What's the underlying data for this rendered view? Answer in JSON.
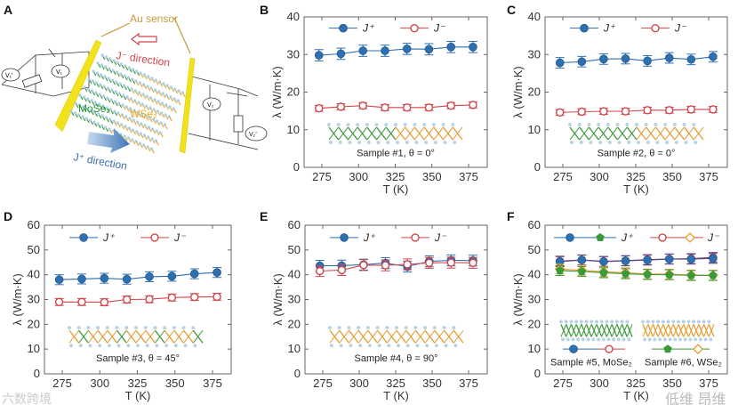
{
  "panel_a": {
    "label": "A",
    "au_sensor": "Au sensor",
    "j_minus_direction": "J⁻ direction",
    "j_plus_direction": "J⁺ direction",
    "mose2": "MoSe₂",
    "wse2": "WSe₂",
    "v1_prime": "V₁'",
    "v1": "V₁",
    "v2": "V₂",
    "v2_prime": "V₂'"
  },
  "watermark": {
    "left": "六数跨境",
    "right": "低维 昂维"
  },
  "colors": {
    "jplus": "#2e6fb0",
    "jminus": "#d0464a",
    "wse2_plus": "#3a9a3a",
    "wse2_minus": "#e89a2c",
    "mose2": "#3a9a3a",
    "wse2": "#e5a62a",
    "gold": "#c79a3c"
  },
  "chart_data": [
    {
      "panel": "B",
      "type": "scatter",
      "xlabel": "T (K)",
      "ylabel": "λ (W/m·K)",
      "xlim": [
        265,
        385
      ],
      "ylim": [
        0,
        40
      ],
      "xticks": [
        275,
        300,
        325,
        350,
        375
      ],
      "yticks": [
        0,
        10,
        20,
        30,
        40
      ],
      "x": [
        273,
        288,
        303,
        318,
        333,
        348,
        363,
        378
      ],
      "legend": [
        "J⁺",
        "J⁻"
      ],
      "caption": "Sample #1, θ = 0°",
      "series": [
        {
          "name": "J+",
          "values": [
            29.8,
            30.2,
            31.0,
            31.0,
            31.5,
            31.4,
            32.0,
            32.0
          ],
          "err": 1.5
        },
        {
          "name": "J-",
          "values": [
            15.7,
            16.1,
            16.4,
            15.9,
            15.9,
            15.9,
            16.4,
            16.6
          ],
          "err": 0.8
        }
      ]
    },
    {
      "panel": "C",
      "type": "scatter",
      "xlabel": "T (K)",
      "ylabel": "λ (W/m·K)",
      "xlim": [
        265,
        385
      ],
      "ylim": [
        0,
        40
      ],
      "xticks": [
        275,
        300,
        325,
        350,
        375
      ],
      "yticks": [
        0,
        10,
        20,
        30,
        40
      ],
      "x": [
        273,
        288,
        303,
        318,
        333,
        348,
        363,
        378
      ],
      "legend": [
        "J⁺",
        "J⁻"
      ],
      "caption": "Sample #2, θ = 0°",
      "series": [
        {
          "name": "J+",
          "values": [
            27.8,
            28.1,
            28.8,
            28.9,
            28.3,
            29.1,
            28.7,
            29.4
          ],
          "err": 1.4
        },
        {
          "name": "J-",
          "values": [
            14.6,
            14.8,
            14.9,
            14.9,
            15.2,
            15.2,
            15.4,
            15.4
          ],
          "err": 0.8
        }
      ]
    },
    {
      "panel": "D",
      "type": "scatter",
      "xlabel": "T (K)",
      "ylabel": "λ (W/m·K)",
      "xlim": [
        265,
        385
      ],
      "ylim": [
        0,
        60
      ],
      "xticks": [
        275,
        300,
        325,
        350,
        375
      ],
      "yticks": [
        0,
        10,
        20,
        30,
        40,
        50,
        60
      ],
      "x": [
        273,
        288,
        303,
        318,
        333,
        348,
        363,
        378
      ],
      "legend": [
        "J⁺",
        "J⁻"
      ],
      "caption": "Sample #3, θ = 45°",
      "series": [
        {
          "name": "J+",
          "values": [
            38.0,
            38.3,
            38.6,
            38.2,
            39.2,
            39.4,
            40.4,
            40.9
          ],
          "err": 2.0
        },
        {
          "name": "J-",
          "values": [
            29.0,
            29.0,
            28.9,
            30.0,
            30.1,
            30.8,
            31.0,
            31.1
          ],
          "err": 1.4
        }
      ]
    },
    {
      "panel": "E",
      "type": "scatter",
      "xlabel": "T (K)",
      "ylabel": "λ (W/m·K)",
      "xlim": [
        265,
        385
      ],
      "ylim": [
        0,
        60
      ],
      "xticks": [
        275,
        300,
        325,
        350,
        375
      ],
      "yticks": [
        0,
        10,
        20,
        30,
        40,
        50,
        60
      ],
      "x": [
        273,
        288,
        303,
        318,
        333,
        348,
        363,
        378
      ],
      "legend": [
        "J⁺",
        "J⁻"
      ],
      "caption": "Sample #4, θ = 90°",
      "series": [
        {
          "name": "J+",
          "values": [
            43.6,
            43.7,
            44.1,
            44.7,
            43.3,
            45.4,
            45.8,
            45.7
          ],
          "err": 2.2
        },
        {
          "name": "J-",
          "values": [
            41.5,
            41.9,
            43.9,
            43.8,
            44.2,
            44.8,
            44.9,
            44.8
          ],
          "err": 2.2
        }
      ]
    },
    {
      "panel": "F",
      "type": "scatter",
      "xlabel": "T (K)",
      "ylabel": "λ (W/m·K)",
      "xlim": [
        265,
        385
      ],
      "ylim": [
        0,
        60
      ],
      "xticks": [
        275,
        300,
        325,
        350,
        375
      ],
      "yticks": [
        0,
        10,
        20,
        30,
        40,
        50,
        60
      ],
      "x": [
        273,
        288,
        303,
        318,
        333,
        348,
        363,
        378
      ],
      "legend": [
        "J⁺",
        "J⁻"
      ],
      "captions": [
        "Sample #5, MoSe₂",
        "Sample #6, WSe₂"
      ],
      "series": [
        {
          "name": "MoSe2 J-",
          "values": [
            45.5,
            46.0,
            45.4,
            45.7,
            46.1,
            46.4,
            46.5,
            47.0
          ],
          "err": 2.0
        },
        {
          "name": "MoSe2 J+",
          "values": [
            45.3,
            45.9,
            45.3,
            45.6,
            45.9,
            46.3,
            46.3,
            46.6
          ],
          "err": 2.0
        },
        {
          "name": "WSe2 J-",
          "values": [
            42.3,
            41.8,
            41.2,
            40.8,
            40.3,
            40.2,
            39.9,
            39.8
          ],
          "err": 2.0
        },
        {
          "name": "WSe2 J+",
          "values": [
            41.7,
            41.3,
            40.8,
            40.4,
            40.1,
            40.0,
            39.7,
            39.7
          ],
          "err": 2.0
        }
      ]
    }
  ]
}
